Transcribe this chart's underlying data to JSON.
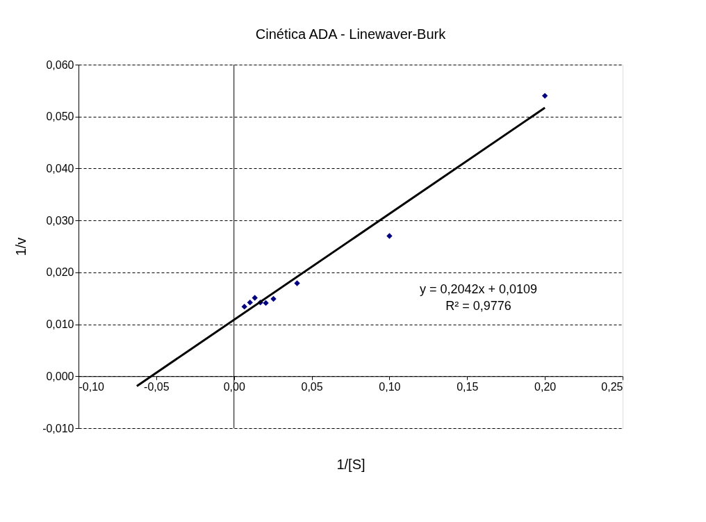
{
  "chart_data": {
    "type": "scatter",
    "title": "Cinética ADA - Linewaver-Burk",
    "xlabel": "1/[S]",
    "ylabel": "1/v",
    "series": [
      {
        "type": "scatter",
        "color": "#000080",
        "marker": "diamond",
        "x": [
          0.0067,
          0.0103,
          0.0134,
          0.017,
          0.0205,
          0.0254,
          0.0406,
          0.1,
          0.2
        ],
        "values": [
          0.0134,
          0.0142,
          0.0151,
          0.0142,
          0.0141,
          0.0149,
          0.0179,
          0.027,
          0.054
        ]
      },
      {
        "type": "line",
        "color": "#000000",
        "line_style": "solid",
        "x": [
          -0.0625,
          0.2
        ],
        "values": [
          -0.0019,
          0.0517
        ]
      }
    ],
    "xlim": [
      -0.1,
      0.25
    ],
    "ylim": [
      -0.01,
      0.06
    ],
    "xticks": [
      {
        "value": -0.1,
        "label": "-0,10"
      },
      {
        "value": -0.05,
        "label": "-0,05"
      },
      {
        "value": 0,
        "label": "0,00"
      },
      {
        "value": 0.05,
        "label": "0,05"
      },
      {
        "value": 0.1,
        "label": "0,10"
      },
      {
        "value": 0.15,
        "label": "0,15"
      },
      {
        "value": 0.2,
        "label": "0,20"
      },
      {
        "value": 0.25,
        "label": "0,25"
      }
    ],
    "yticks": [
      {
        "value": -0.01,
        "label": "-0,010"
      },
      {
        "value": 0,
        "label": "0,000"
      },
      {
        "value": 0.01,
        "label": "0,010"
      },
      {
        "value": 0.02,
        "label": "0,020"
      },
      {
        "value": 0.03,
        "label": "0,030"
      },
      {
        "value": 0.04,
        "label": "0,040"
      },
      {
        "value": 0.05,
        "label": "0,050"
      },
      {
        "value": 0.06,
        "label": "0,060"
      }
    ],
    "ref_lines": [
      {
        "axis": "x",
        "value": 0,
        "color": "#000000"
      }
    ],
    "grid": "y",
    "annotations": [
      "y = 0,2042x + 0,0109",
      "R² = 0,9776"
    ]
  }
}
